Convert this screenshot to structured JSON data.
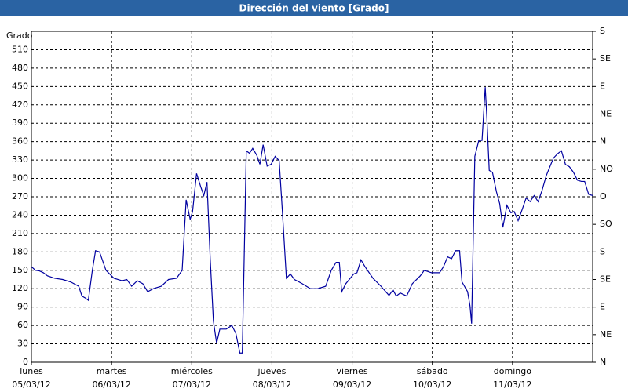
{
  "chart_data": {
    "type": "line",
    "title": "Dirección del viento [Grado]",
    "y_label": "Grado",
    "color": "#0000a0",
    "grid": true,
    "x": [
      0,
      0.05,
      0.1,
      0.15,
      0.2,
      0.29,
      0.39,
      0.49,
      0.59,
      0.63,
      0.67,
      0.71,
      0.76,
      0.8,
      0.85,
      0.93,
      1.03,
      1.13,
      1.19,
      1.25,
      1.32,
      1.39,
      1.45,
      1.52,
      1.62,
      1.71,
      1.81,
      1.88,
      1.93,
      1.98,
      2.01,
      2.06,
      2.11,
      2.15,
      2.19,
      2.23,
      2.27,
      2.31,
      2.35,
      2.43,
      2.5,
      2.55,
      2.6,
      2.63,
      2.68,
      2.72,
      2.76,
      2.81,
      2.85,
      2.89,
      2.94,
      2.99,
      3.04,
      3.09,
      3.13,
      3.18,
      3.23,
      3.28,
      3.38,
      3.48,
      3.57,
      3.67,
      3.74,
      3.8,
      3.84,
      3.87,
      3.92,
      4.02,
      4.06,
      4.11,
      4.16,
      4.26,
      4.36,
      4.46,
      4.51,
      4.55,
      4.6,
      4.68,
      4.75,
      4.85,
      4.9,
      4.99,
      5.09,
      5.14,
      5.19,
      5.24,
      5.29,
      5.34,
      5.37,
      5.44,
      5.47,
      5.49,
      5.53,
      5.58,
      5.62,
      5.66,
      5.68,
      5.71,
      5.75,
      5.8,
      5.84,
      5.88,
      5.93,
      5.98,
      6.02,
      6.07,
      6.12,
      6.17,
      6.22,
      6.27,
      6.32,
      6.37,
      6.42,
      6.46,
      6.51,
      6.56,
      6.61,
      6.66,
      6.71,
      6.76,
      6.81,
      6.86,
      6.9,
      6.95,
      7.0
    ],
    "values": [
      156,
      150,
      149,
      146,
      141,
      137,
      135,
      131,
      124,
      108,
      105,
      101,
      150,
      182,
      180,
      150,
      137,
      133,
      135,
      124,
      133,
      128,
      115,
      120,
      124,
      135,
      137,
      150,
      265,
      233,
      246,
      308,
      287,
      272,
      294,
      169,
      67,
      31,
      54,
      54,
      60,
      47,
      15,
      15,
      345,
      341,
      349,
      338,
      323,
      355,
      320,
      323,
      336,
      329,
      246,
      137,
      144,
      135,
      128,
      120,
      120,
      124,
      150,
      163,
      163,
      115,
      128,
      144,
      146,
      167,
      156,
      137,
      124,
      109,
      118,
      108,
      113,
      108,
      128,
      141,
      150,
      146,
      146,
      156,
      172,
      169,
      182,
      182,
      131,
      115,
      92,
      63,
      336,
      362,
      362,
      449,
      400,
      313,
      310,
      278,
      259,
      220,
      256,
      244,
      246,
      231,
      249,
      268,
      262,
      272,
      262,
      281,
      304,
      317,
      333,
      340,
      345,
      323,
      319,
      310,
      297,
      295,
      295,
      274,
      272
    ],
    "xlim": [
      0,
      7
    ],
    "ylim": [
      0,
      540
    ],
    "y2lim": [
      0,
      540
    ],
    "xticks": [
      {
        "value": 0,
        "label": "lunes",
        "date": "05/03/12"
      },
      {
        "value": 1,
        "label": "martes",
        "date": "06/03/12"
      },
      {
        "value": 2,
        "label": "miércoles",
        "date": "07/03/12"
      },
      {
        "value": 3,
        "label": "jueves",
        "date": "08/03/12"
      },
      {
        "value": 4,
        "label": "viernes",
        "date": "09/03/12"
      },
      {
        "value": 5,
        "label": "sábado",
        "date": "10/03/12"
      },
      {
        "value": 6,
        "label": "domingo",
        "date": "11/03/12"
      }
    ],
    "yticks": [
      0,
      30,
      60,
      90,
      120,
      150,
      180,
      210,
      240,
      270,
      300,
      330,
      360,
      390,
      420,
      450,
      480,
      510
    ],
    "y2ticks": [
      {
        "value": 0,
        "label": "N"
      },
      {
        "value": 45,
        "label": "NE"
      },
      {
        "value": 90,
        "label": "E"
      },
      {
        "value": 135,
        "label": "SE"
      },
      {
        "value": 180,
        "label": "S"
      },
      {
        "value": 225,
        "label": "SO"
      },
      {
        "value": 270,
        "label": "O"
      },
      {
        "value": 315,
        "label": "NO"
      },
      {
        "value": 360,
        "label": "N"
      },
      {
        "value": 405,
        "label": "NE"
      },
      {
        "value": 450,
        "label": "E"
      },
      {
        "value": 495,
        "label": "SE"
      },
      {
        "value": 540,
        "label": "S"
      }
    ]
  }
}
